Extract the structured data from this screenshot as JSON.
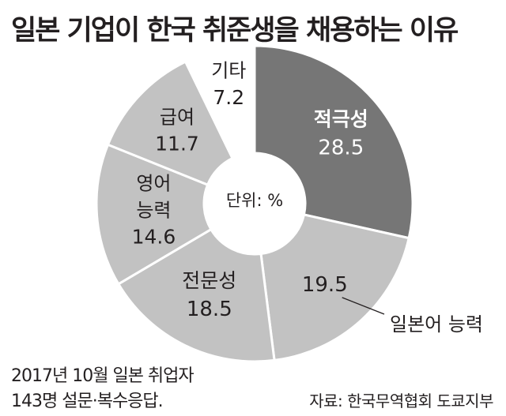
{
  "chart_data": {
    "type": "pie",
    "donut": true,
    "title": "일본 기업이 한국 취준생을 채용하는 이유",
    "center_label": "단위: %",
    "slices": [
      {
        "label": "적극성",
        "value": 28.5,
        "color": "#767676",
        "text_color": "#ffffff",
        "label_position": "inside"
      },
      {
        "label": "일본어 능력",
        "value": 19.5,
        "color": "#c2c2c2",
        "text_color": "#231f20",
        "label_position": "outside-with-leader"
      },
      {
        "label": "전문성",
        "value": 18.5,
        "color": "#c2c2c2",
        "text_color": "#231f20",
        "label_position": "inside"
      },
      {
        "label": "영어 능력",
        "value": 14.6,
        "color": "#c2c2c2",
        "text_color": "#231f20",
        "label_position": "inside"
      },
      {
        "label": "급여",
        "value": 11.7,
        "color": "#c2c2c2",
        "text_color": "#231f20",
        "label_position": "inside"
      },
      {
        "label": "기타",
        "value": 7.2,
        "color": "#ffffff",
        "text_color": "#231f20",
        "label_position": "inside"
      }
    ],
    "legend": "none"
  },
  "notes": {
    "line1": "2017년 10월 일본 취업자",
    "line2": "143명 설문·복수응답."
  },
  "source": "자료: 한국무역협회 도쿄지부"
}
